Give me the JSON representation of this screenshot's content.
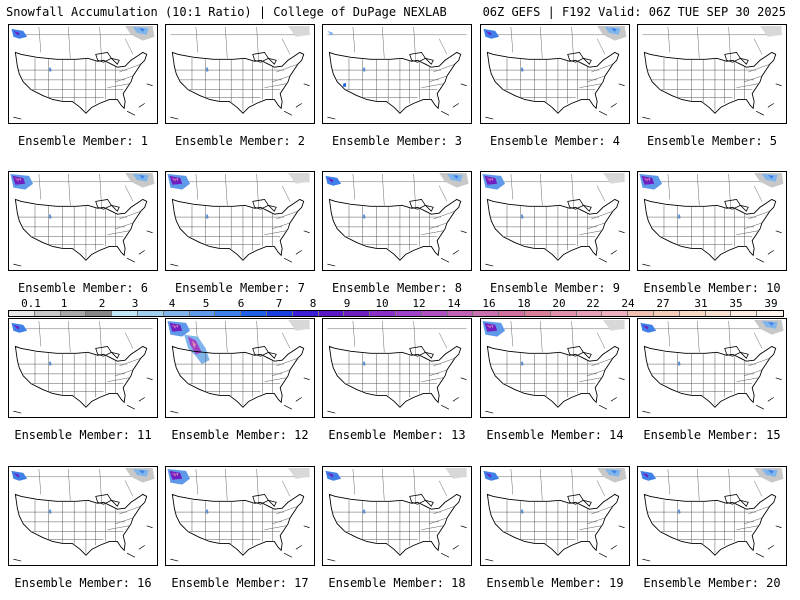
{
  "header": {
    "left": "Snowfall Accumulation (10:1 Ratio) | College of DuPage NEXLAB",
    "right": "06Z GEFS | F192 Valid: 06Z TUE SEP 30 2025"
  },
  "panels": [
    {
      "label": "Ensemble Member: 1",
      "snow": [
        "pnw-light",
        "canada-east",
        "rockies-dot"
      ]
    },
    {
      "label": "Ensemble Member: 2",
      "snow": [
        "rockies-dot",
        "canada-east-light"
      ]
    },
    {
      "label": "Ensemble Member: 3",
      "snow": [
        "pnw-tiny",
        "southwest-dot",
        "rockies-dot"
      ]
    },
    {
      "label": "Ensemble Member: 4",
      "snow": [
        "pnw-light",
        "canada-east",
        "rockies-dot"
      ]
    },
    {
      "label": "Ensemble Member: 5",
      "snow": [
        "canada-east-light"
      ]
    },
    {
      "label": "Ensemble Member: 6",
      "snow": [
        "pnw-heavy",
        "canada-east",
        "rockies-dot"
      ]
    },
    {
      "label": "Ensemble Member: 7",
      "snow": [
        "pnw-heavy",
        "rockies-dot",
        "canada-east-light"
      ]
    },
    {
      "label": "Ensemble Member: 8",
      "snow": [
        "pnw-light",
        "canada-east",
        "rockies-dot"
      ]
    },
    {
      "label": "Ensemble Member: 9",
      "snow": [
        "pnw-heavy",
        "rockies-dot",
        "canada-east-light"
      ]
    },
    {
      "label": "Ensemble Member: 10",
      "snow": [
        "pnw-heavy",
        "canada-east",
        "rockies-dot"
      ]
    },
    {
      "label": "Ensemble Member: 11",
      "snow": [
        "pnw-light",
        "rockies-dot"
      ]
    },
    {
      "label": "Ensemble Member: 12",
      "snow": [
        "pnw-heavy",
        "rockies-heavy",
        "canada-east-light"
      ]
    },
    {
      "label": "Ensemble Member: 13",
      "snow": [
        "rockies-dot"
      ]
    },
    {
      "label": "Ensemble Member: 14",
      "snow": [
        "pnw-heavy",
        "rockies-dot",
        "canada-east-light"
      ]
    },
    {
      "label": "Ensemble Member: 15",
      "snow": [
        "pnw-light",
        "canada-east",
        "rockies-dot"
      ]
    },
    {
      "label": "Ensemble Member: 16",
      "snow": [
        "pnw-light",
        "canada-east",
        "rockies-dot"
      ]
    },
    {
      "label": "Ensemble Member: 17",
      "snow": [
        "pnw-heavy",
        "rockies-dot",
        "canada-east-light"
      ]
    },
    {
      "label": "Ensemble Member: 18",
      "snow": [
        "pnw-light",
        "rockies-dot",
        "canada-east-light"
      ]
    },
    {
      "label": "Ensemble Member: 19",
      "snow": [
        "pnw-light",
        "canada-east",
        "rockies-dot"
      ]
    },
    {
      "label": "Ensemble Member: 20",
      "snow": [
        "pnw-light",
        "canada-east",
        "rockies-dot"
      ]
    }
  ],
  "colorbar": {
    "labels": [
      "0.1",
      "1",
      "2",
      "3",
      "4",
      "5",
      "6",
      "7",
      "8",
      "9",
      "10",
      "12",
      "14",
      "16",
      "18",
      "20",
      "22",
      "24",
      "27",
      "31",
      "35",
      "39"
    ],
    "colors": [
      "#e8e8e8",
      "#c8c8c8",
      "#a8a8a8",
      "#888888",
      "#bfe7f5",
      "#9fd0f0",
      "#80b5ec",
      "#5f9aea",
      "#3f7fe8",
      "#2060e6",
      "#1a3fe0",
      "#3c20d8",
      "#5a18c8",
      "#7020c0",
      "#8a30c8",
      "#a040c8",
      "#b050c0",
      "#c060b8",
      "#c870b0",
      "#d070a0",
      "#d88098",
      "#e090a8",
      "#e8a0b8",
      "#f0b0c0",
      "#f0c0b0",
      "#f4cdb8",
      "#f6d8c4",
      "#f8e0d0",
      "#faeae0",
      "#fcf4ec"
    ]
  },
  "colors": {
    "border": "#000000",
    "state_lines": "#555555",
    "bg": "#ffffff"
  }
}
